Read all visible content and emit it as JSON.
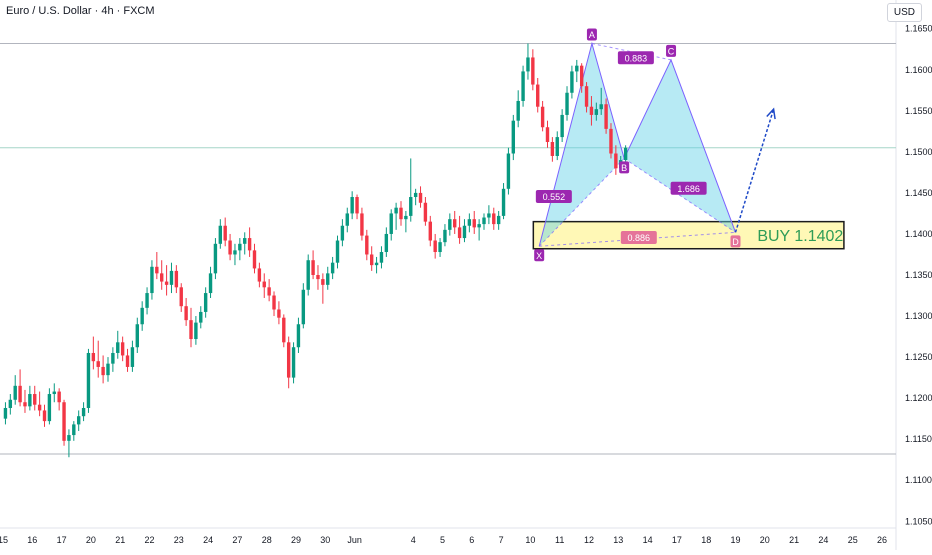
{
  "header": {
    "symbol_title": "Euro / U.S. Dollar · 4h · FXCM",
    "currency_button": "USD"
  },
  "chart_data": {
    "type": "candlestick",
    "ylim": [
      1.1015,
      1.1685
    ],
    "y_ticks": [
      1.105,
      1.11,
      1.115,
      1.12,
      1.125,
      1.13,
      1.135,
      1.14,
      1.145,
      1.15,
      1.155,
      1.16,
      1.165
    ],
    "y_tick_labels": [
      "1.10500",
      "1.11000",
      "1.11500",
      "1.12000",
      "1.12500",
      "1.13000",
      "1.13500",
      "1.14000",
      "1.14500",
      "1.15000",
      "1.15500",
      "1.16000",
      "1.16500"
    ],
    "x_ticks": [
      {
        "label": "15",
        "x": 0
      },
      {
        "label": "16",
        "x": 1
      },
      {
        "label": "17",
        "x": 2
      },
      {
        "label": "20",
        "x": 3
      },
      {
        "label": "21",
        "x": 4
      },
      {
        "label": "22",
        "x": 5
      },
      {
        "label": "23",
        "x": 6
      },
      {
        "label": "24",
        "x": 7
      },
      {
        "label": "27",
        "x": 8
      },
      {
        "label": "28",
        "x": 9
      },
      {
        "label": "29",
        "x": 10
      },
      {
        "label": "30",
        "x": 11
      },
      {
        "label": "Jun",
        "x": 12
      },
      {
        "label": "4",
        "x": 14
      },
      {
        "label": "5",
        "x": 15
      },
      {
        "label": "6",
        "x": 16
      },
      {
        "label": "7",
        "x": 17
      },
      {
        "label": "10",
        "x": 18
      },
      {
        "label": "11",
        "x": 19
      },
      {
        "label": "12",
        "x": 20
      },
      {
        "label": "13",
        "x": 21
      },
      {
        "label": "14",
        "x": 22
      },
      {
        "label": "17",
        "x": 23
      },
      {
        "label": "18",
        "x": 24
      },
      {
        "label": "19",
        "x": 25
      },
      {
        "label": "20",
        "x": 26
      },
      {
        "label": "21",
        "x": 27
      },
      {
        "label": "24",
        "x": 28
      },
      {
        "label": "25",
        "x": 29
      },
      {
        "label": "26",
        "x": 30
      }
    ],
    "horizontal_lines": [
      {
        "value": 1.1632,
        "color": "#b2b5be"
      },
      {
        "value": 1.1505,
        "color": "#a5d6c8"
      },
      {
        "value": 1.1132,
        "color": "#b2b5be"
      }
    ],
    "candles_per_day": 6,
    "candles": [
      [
        1.1175,
        1.1195,
        1.1168,
        1.1188
      ],
      [
        1.1188,
        1.1205,
        1.118,
        1.1198
      ],
      [
        1.1198,
        1.1228,
        1.1192,
        1.1215
      ],
      [
        1.1215,
        1.1235,
        1.119,
        1.1195
      ],
      [
        1.1195,
        1.121,
        1.1182,
        1.119
      ],
      [
        1.119,
        1.1215,
        1.1185,
        1.1205
      ],
      [
        1.1205,
        1.1215,
        1.1185,
        1.1192
      ],
      [
        1.1192,
        1.1208,
        1.1178,
        1.1185
      ],
      [
        1.1185,
        1.1192,
        1.1165,
        1.1172
      ],
      [
        1.1172,
        1.1212,
        1.1168,
        1.1205
      ],
      [
        1.1205,
        1.1218,
        1.1195,
        1.1208
      ],
      [
        1.1208,
        1.1212,
        1.1185,
        1.1195
      ],
      [
        1.1195,
        1.1198,
        1.1142,
        1.1148
      ],
      [
        1.1148,
        1.1162,
        1.1128,
        1.1155
      ],
      [
        1.1155,
        1.1172,
        1.1148,
        1.1168
      ],
      [
        1.1168,
        1.1185,
        1.116,
        1.1178
      ],
      [
        1.1178,
        1.1195,
        1.1172,
        1.1188
      ],
      [
        1.1188,
        1.126,
        1.1182,
        1.1255
      ],
      [
        1.1255,
        1.1275,
        1.1235,
        1.1245
      ],
      [
        1.1245,
        1.127,
        1.1225,
        1.1238
      ],
      [
        1.1238,
        1.1252,
        1.1218,
        1.1228
      ],
      [
        1.1228,
        1.125,
        1.122,
        1.1242
      ],
      [
        1.1242,
        1.1262,
        1.1232,
        1.1255
      ],
      [
        1.1255,
        1.1282,
        1.1248,
        1.1268
      ],
      [
        1.1268,
        1.1275,
        1.1245,
        1.1252
      ],
      [
        1.1252,
        1.126,
        1.1232,
        1.1238
      ],
      [
        1.1238,
        1.127,
        1.1232,
        1.1262
      ],
      [
        1.1262,
        1.1298,
        1.1255,
        1.129
      ],
      [
        1.129,
        1.1318,
        1.1282,
        1.131
      ],
      [
        1.131,
        1.1335,
        1.1302,
        1.1328
      ],
      [
        1.1328,
        1.1368,
        1.132,
        1.136
      ],
      [
        1.136,
        1.1378,
        1.1345,
        1.1352
      ],
      [
        1.1352,
        1.1368,
        1.1332,
        1.1342
      ],
      [
        1.1342,
        1.1362,
        1.1325,
        1.1338
      ],
      [
        1.1338,
        1.1365,
        1.1328,
        1.1355
      ],
      [
        1.1355,
        1.1362,
        1.1328,
        1.1335
      ],
      [
        1.1335,
        1.134,
        1.1305,
        1.1312
      ],
      [
        1.1312,
        1.1322,
        1.1288,
        1.1295
      ],
      [
        1.1295,
        1.131,
        1.1262,
        1.1272
      ],
      [
        1.1272,
        1.13,
        1.1265,
        1.1292
      ],
      [
        1.1292,
        1.1312,
        1.1285,
        1.1305
      ],
      [
        1.1305,
        1.1335,
        1.1298,
        1.1328
      ],
      [
        1.1328,
        1.136,
        1.1322,
        1.1352
      ],
      [
        1.1352,
        1.1395,
        1.1345,
        1.1388
      ],
      [
        1.1388,
        1.1418,
        1.1382,
        1.141
      ],
      [
        1.141,
        1.142,
        1.1385,
        1.1392
      ],
      [
        1.1392,
        1.14,
        1.1368,
        1.1375
      ],
      [
        1.1375,
        1.1388,
        1.1362,
        1.138
      ],
      [
        1.138,
        1.1395,
        1.1368,
        1.1388
      ],
      [
        1.1388,
        1.1402,
        1.1375,
        1.1395
      ],
      [
        1.1395,
        1.1408,
        1.1372,
        1.138
      ],
      [
        1.138,
        1.1388,
        1.1352,
        1.1358
      ],
      [
        1.1358,
        1.1365,
        1.1335,
        1.1342
      ],
      [
        1.1342,
        1.1352,
        1.1322,
        1.1335
      ],
      [
        1.1335,
        1.1345,
        1.1318,
        1.1325
      ],
      [
        1.1325,
        1.133,
        1.13,
        1.1308
      ],
      [
        1.1308,
        1.1318,
        1.129,
        1.1298
      ],
      [
        1.1298,
        1.1302,
        1.1262,
        1.1268
      ],
      [
        1.1268,
        1.1275,
        1.1212,
        1.1225
      ],
      [
        1.1225,
        1.1268,
        1.1218,
        1.1262
      ],
      [
        1.1262,
        1.1298,
        1.1255,
        1.129
      ],
      [
        1.129,
        1.134,
        1.1285,
        1.1332
      ],
      [
        1.1332,
        1.1375,
        1.1325,
        1.1368
      ],
      [
        1.1368,
        1.138,
        1.1345,
        1.135
      ],
      [
        1.135,
        1.1362,
        1.1332,
        1.1345
      ],
      [
        1.1345,
        1.1352,
        1.1315,
        1.1338
      ],
      [
        1.1338,
        1.136,
        1.1332,
        1.1352
      ],
      [
        1.1352,
        1.1372,
        1.1345,
        1.1365
      ],
      [
        1.1365,
        1.1398,
        1.1358,
        1.1392
      ],
      [
        1.1392,
        1.1418,
        1.1385,
        1.141
      ],
      [
        1.141,
        1.1432,
        1.1402,
        1.1425
      ],
      [
        1.1425,
        1.1452,
        1.1418,
        1.1445
      ],
      [
        1.1445,
        1.1448,
        1.1418,
        1.1425
      ],
      [
        1.1425,
        1.1432,
        1.1392,
        1.1398
      ],
      [
        1.1398,
        1.1405,
        1.1368,
        1.1375
      ],
      [
        1.1375,
        1.1385,
        1.1355,
        1.1362
      ],
      [
        1.1362,
        1.1372,
        1.1352,
        1.1365
      ],
      [
        1.1365,
        1.1385,
        1.1358,
        1.1378
      ],
      [
        1.1378,
        1.1408,
        1.1372,
        1.14
      ],
      [
        1.14,
        1.143,
        1.1392,
        1.1425
      ],
      [
        1.1425,
        1.1438,
        1.1405,
        1.1432
      ],
      [
        1.1432,
        1.144,
        1.141,
        1.1418
      ],
      [
        1.1418,
        1.1428,
        1.1402,
        1.1422
      ],
      [
        1.1422,
        1.1492,
        1.1415,
        1.1445
      ],
      [
        1.1445,
        1.1455,
        1.1435,
        1.145
      ],
      [
        1.145,
        1.1458,
        1.1432,
        1.1438
      ],
      [
        1.1438,
        1.1445,
        1.141,
        1.1415
      ],
      [
        1.1415,
        1.1422,
        1.1385,
        1.1392
      ],
      [
        1.1392,
        1.14,
        1.137,
        1.1378
      ],
      [
        1.1378,
        1.1395,
        1.1372,
        1.139
      ],
      [
        1.139,
        1.1412,
        1.1385,
        1.1405
      ],
      [
        1.1405,
        1.1425,
        1.1398,
        1.1418
      ],
      [
        1.1418,
        1.1428,
        1.14,
        1.1408
      ],
      [
        1.1408,
        1.1422,
        1.1388,
        1.1395
      ],
      [
        1.1395,
        1.1418,
        1.139,
        1.141
      ],
      [
        1.141,
        1.1425,
        1.1402,
        1.1418
      ],
      [
        1.1418,
        1.1428,
        1.14,
        1.1408
      ],
      [
        1.1408,
        1.1418,
        1.1392,
        1.1412
      ],
      [
        1.1412,
        1.1425,
        1.1405,
        1.142
      ],
      [
        1.142,
        1.1435,
        1.1412,
        1.1425
      ],
      [
        1.1425,
        1.1432,
        1.1405,
        1.1412
      ],
      [
        1.1412,
        1.1428,
        1.1405,
        1.1422
      ],
      [
        1.1422,
        1.1462,
        1.1418,
        1.1455
      ],
      [
        1.1455,
        1.1505,
        1.1448,
        1.1498
      ],
      [
        1.1498,
        1.1545,
        1.149,
        1.1538
      ],
      [
        1.1538,
        1.1575,
        1.153,
        1.1562
      ],
      [
        1.1562,
        1.1605,
        1.1555,
        1.1598
      ],
      [
        1.1598,
        1.1632,
        1.1588,
        1.1615
      ],
      [
        1.1615,
        1.1625,
        1.1575,
        1.1582
      ],
      [
        1.1582,
        1.159,
        1.1548,
        1.1555
      ],
      [
        1.1555,
        1.1562,
        1.1525,
        1.153
      ],
      [
        1.153,
        1.1538,
        1.1505,
        1.1512
      ],
      [
        1.1512,
        1.1518,
        1.1488,
        1.1495
      ],
      [
        1.1495,
        1.1525,
        1.149,
        1.1518
      ],
      [
        1.1518,
        1.1552,
        1.1512,
        1.1545
      ],
      [
        1.1545,
        1.158,
        1.1538,
        1.1572
      ],
      [
        1.1572,
        1.1605,
        1.1565,
        1.1598
      ],
      [
        1.1598,
        1.1612,
        1.1585,
        1.1605
      ],
      [
        1.1605,
        1.1608,
        1.1572,
        1.158
      ],
      [
        1.158,
        1.1585,
        1.1548,
        1.1555
      ],
      [
        1.1555,
        1.1568,
        1.1532,
        1.1545
      ],
      [
        1.1545,
        1.156,
        1.1538,
        1.1552
      ],
      [
        1.1552,
        1.1578,
        1.1545,
        1.1558
      ],
      [
        1.1558,
        1.1565,
        1.1522,
        1.1528
      ],
      [
        1.1528,
        1.1535,
        1.1492,
        1.1498
      ],
      [
        1.1498,
        1.1508,
        1.1472,
        1.148
      ],
      [
        1.148,
        1.1495,
        1.1475,
        1.149
      ],
      [
        1.149,
        1.1508,
        1.1485,
        1.1505
      ]
    ],
    "harmonic_pattern": {
      "type": "bearish-looking bullish harmonic (XABCD)",
      "points": [
        {
          "label": "X",
          "x": 18.3,
          "y": 1.1385
        },
        {
          "label": "A",
          "x": 20.1,
          "y": 1.1632
        },
        {
          "label": "B",
          "x": 21.2,
          "y": 1.1492
        },
        {
          "label": "C",
          "x": 22.8,
          "y": 1.1612
        },
        {
          "label": "D",
          "x": 25.0,
          "y": 1.1402
        }
      ],
      "ratios": [
        {
          "label": "0.552",
          "x": 18.8,
          "y": 1.1445
        },
        {
          "label": "0.883",
          "x": 21.6,
          "y": 1.1614
        },
        {
          "label": "1.686",
          "x": 23.4,
          "y": 1.1455
        },
        {
          "label": "0.886",
          "x": 21.7,
          "y": 1.1395
        }
      ]
    },
    "buy_zone": {
      "x0": 18.1,
      "x1": 28.7,
      "y0": 1.1382,
      "y1": 1.1415,
      "label": "BUY 1.1402"
    },
    "projection": {
      "x0": 25.0,
      "y0": 1.1402,
      "x1": 26.3,
      "y1": 1.1552
    }
  },
  "colors": {
    "up": "#089981",
    "down": "#f23645",
    "pattern_fill": "#5fd0e6",
    "pattern_line": "#7b61ff",
    "label_purple": "#9c27b0",
    "zone_fill": "#fff59d",
    "zone_border": "#1b1b1b",
    "buy_text": "#2e9c57",
    "projection": "#1e49c7"
  }
}
